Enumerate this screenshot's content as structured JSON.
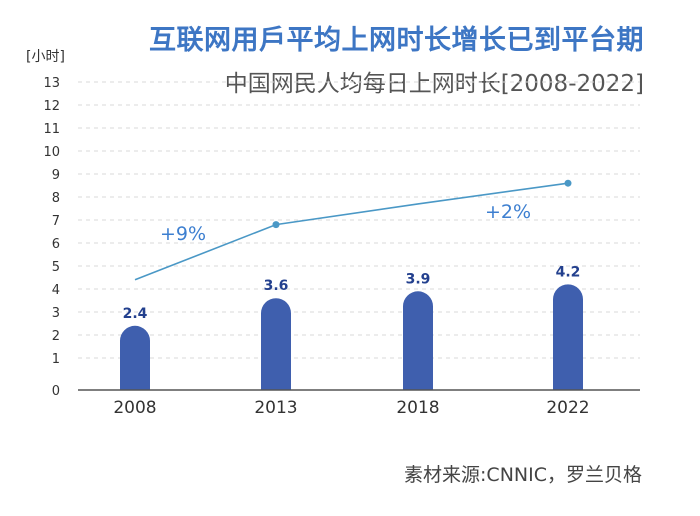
{
  "header": {
    "title": "互联网用戶平均上网时长增长已到平台期",
    "subtitle": "中国网民人均每日上网时长[2008-2022]",
    "source": "素材来源:CNNIC，罗兰贝格"
  },
  "colors": {
    "title": "#3d76c4",
    "bar": "#3f5fae",
    "line": "#4a98c6",
    "growth_label": "#3d7fd0",
    "data_label": "#23408e",
    "grid": "#d9d9d9"
  },
  "chart_data": {
    "type": "bar",
    "title": "互联网用戶平均上网时长增长已到平台期",
    "subtitle": "中国网民人均每日上网时长[2008-2022]",
    "ylabel": "[小时]",
    "xlabel": "",
    "categories": [
      "2008",
      "2013",
      "2018",
      "2022"
    ],
    "values": [
      2.4,
      3.6,
      3.9,
      4.2
    ],
    "data_labels": [
      "2.4",
      "3.6",
      "3.9",
      "4.2"
    ],
    "yticks": [
      "0",
      "1",
      "2",
      "3",
      "4",
      "5",
      "6",
      "7",
      "8",
      "9",
      "10",
      "11",
      "12",
      "13"
    ],
    "ylim": [
      0,
      13
    ],
    "grid": true,
    "trend_line": {
      "type": "line",
      "x": [
        "2008",
        "2013",
        "2018",
        "2022"
      ],
      "y": [
        4.4,
        6.8,
        7.7,
        8.6
      ],
      "markers": [
        false,
        true,
        false,
        true
      ]
    },
    "annotations": [
      {
        "text": "+9%",
        "between": [
          "2008",
          "2013"
        ]
      },
      {
        "text": "+2%",
        "between": [
          "2018",
          "2022"
        ]
      }
    ]
  }
}
